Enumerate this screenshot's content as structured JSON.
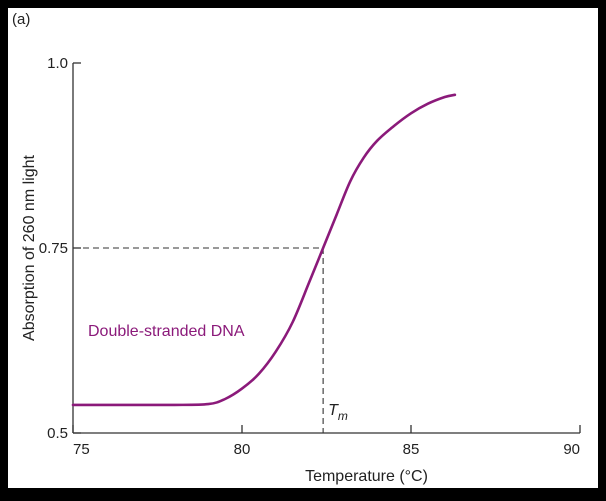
{
  "panel_label": "(a)",
  "chart_data": {
    "type": "line",
    "title": "",
    "xlabel": "Temperature (°C)",
    "ylabel": "Absorption of 260 nm light",
    "xlim": [
      75,
      90
    ],
    "ylim": [
      0.5,
      1.0
    ],
    "x_ticks": [
      75,
      80,
      85,
      90
    ],
    "x_tick_labels": [
      "75",
      "80",
      "85",
      "90"
    ],
    "y_ticks": [
      0.5,
      0.75,
      1.0
    ],
    "y_tick_labels": [
      "0.5",
      "0.75",
      "1.0"
    ],
    "grid": false,
    "series": [
      {
        "name": "Double-stranded DNA",
        "color": "#8B1A7A",
        "x": [
          75,
          76,
          77,
          78,
          79,
          79.5,
          80,
          80.5,
          81,
          81.5,
          82,
          82.4,
          82.8,
          83.2,
          83.6,
          84,
          84.5,
          85,
          85.5,
          86,
          86.3
        ],
        "y": [
          0.538,
          0.538,
          0.538,
          0.538,
          0.539,
          0.546,
          0.56,
          0.58,
          0.61,
          0.65,
          0.705,
          0.75,
          0.795,
          0.84,
          0.872,
          0.895,
          0.915,
          0.932,
          0.945,
          0.954,
          0.957
        ]
      }
    ],
    "annotations": [
      {
        "label": "T",
        "subscript": "m",
        "x": 82.4,
        "y": 0.75,
        "style": "dashed guides to both axes"
      }
    ]
  }
}
